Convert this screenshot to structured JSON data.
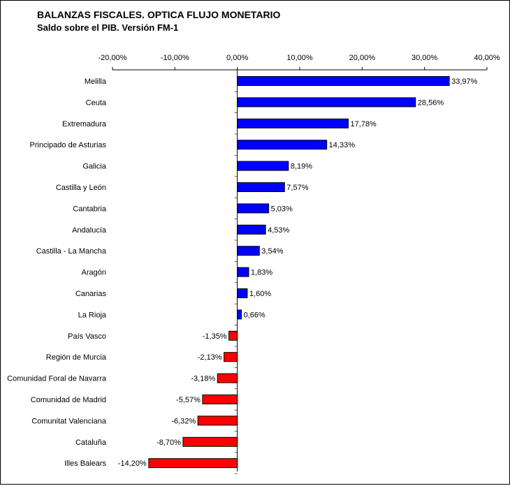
{
  "chart_data": {
    "type": "bar",
    "orientation": "horizontal",
    "title": "BALANZAS FISCALES. OPTICA FLUJO MONETARIO",
    "subtitle": "Saldo sobre el PIB. Versión FM-1",
    "xlim": [
      -20,
      40
    ],
    "ticks": [
      -20,
      -10,
      0,
      10,
      20,
      30,
      40
    ],
    "tick_labels": [
      "-20,00%",
      "-10,00%",
      "0,00%",
      "10,00%",
      "20,00%",
      "30,00%",
      "40,00%"
    ],
    "axis_position": "top",
    "grid": false,
    "colors": {
      "positive": "#0000ff",
      "negative": "#ff0000"
    },
    "categories": [
      "Melilla",
      "Ceuta",
      "Extremadura",
      "Principado de Asturias",
      "Galicia",
      "Castilla y León",
      "Cantabria",
      "Andalucía",
      "Castilla - La Mancha",
      "Aragón",
      "Canarias",
      "La Rioja",
      "País Vasco",
      "Región de Murcia",
      "Comunidad Foral de Navarra",
      "Comunidad de Madrid",
      "Comunitat Valenciana",
      "Cataluña",
      "Illes Balears"
    ],
    "values": [
      33.97,
      28.56,
      17.78,
      14.33,
      8.19,
      7.57,
      5.03,
      4.53,
      3.54,
      1.83,
      1.6,
      0.66,
      -1.35,
      -2.13,
      -3.18,
      -5.57,
      -6.32,
      -8.7,
      -14.2
    ],
    "data_labels": [
      "33,97%",
      "28,56%",
      "17,78%",
      "14,33%",
      "8,19%",
      "7,57%",
      "5,03%",
      "4,53%",
      "3,54%",
      "1,83%",
      "1,60%",
      "0,66%",
      "-1,35%",
      "-2,13%",
      "-3,18%",
      "-5,57%",
      "-6,32%",
      "-8,70%",
      "-14,20%"
    ]
  }
}
